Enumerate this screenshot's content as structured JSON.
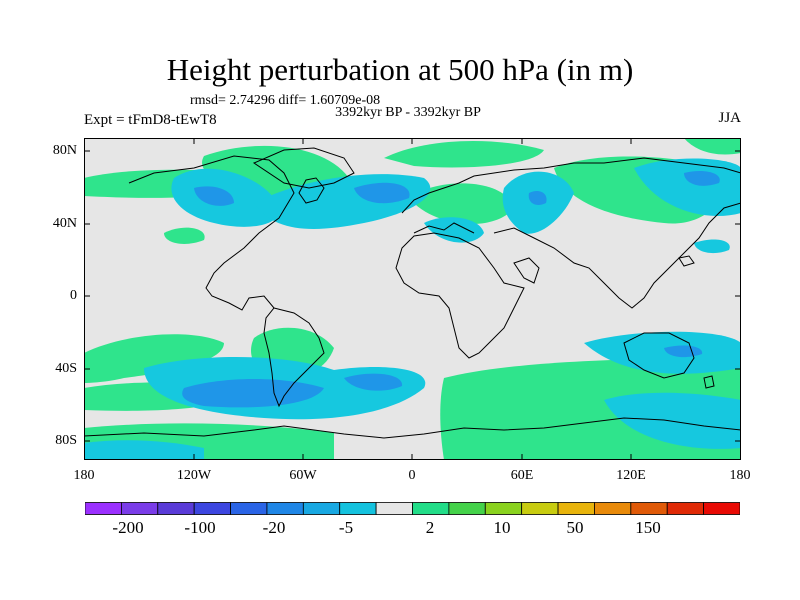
{
  "header": {
    "title": "Height perturbation at 500 hPa (in m)",
    "stats": "rmsd= 2.74296 diff= 1.60709e-08",
    "subtitle": "3392kyr BP - 3392kyr BP",
    "experiment": "Expt = tFmD8-tEwT8",
    "season": "JJA"
  },
  "axes": {
    "y_ticks": [
      "80N",
      "40N",
      "0",
      "40S",
      "80S"
    ],
    "x_ticks": [
      "180",
      "120W",
      "60W",
      "0",
      "60E",
      "120E",
      "180"
    ]
  },
  "colorbar": {
    "labels": [
      "-200",
      "-100",
      "-20",
      "-5",
      "2",
      "10",
      "50",
      "150"
    ],
    "colors": [
      "#9b30ff",
      "#7a3ce8",
      "#5a3bd8",
      "#3c46e0",
      "#2a64e6",
      "#1f86e6",
      "#18a8e2",
      "#14c2de",
      "#e6e6e6",
      "#22dd88",
      "#44d24a",
      "#8ad21e",
      "#c8cc10",
      "#e8b40c",
      "#e88a0a",
      "#e05a08",
      "#e02a06",
      "#e80a04"
    ],
    "missing_color": "#e6e6e6"
  }
}
